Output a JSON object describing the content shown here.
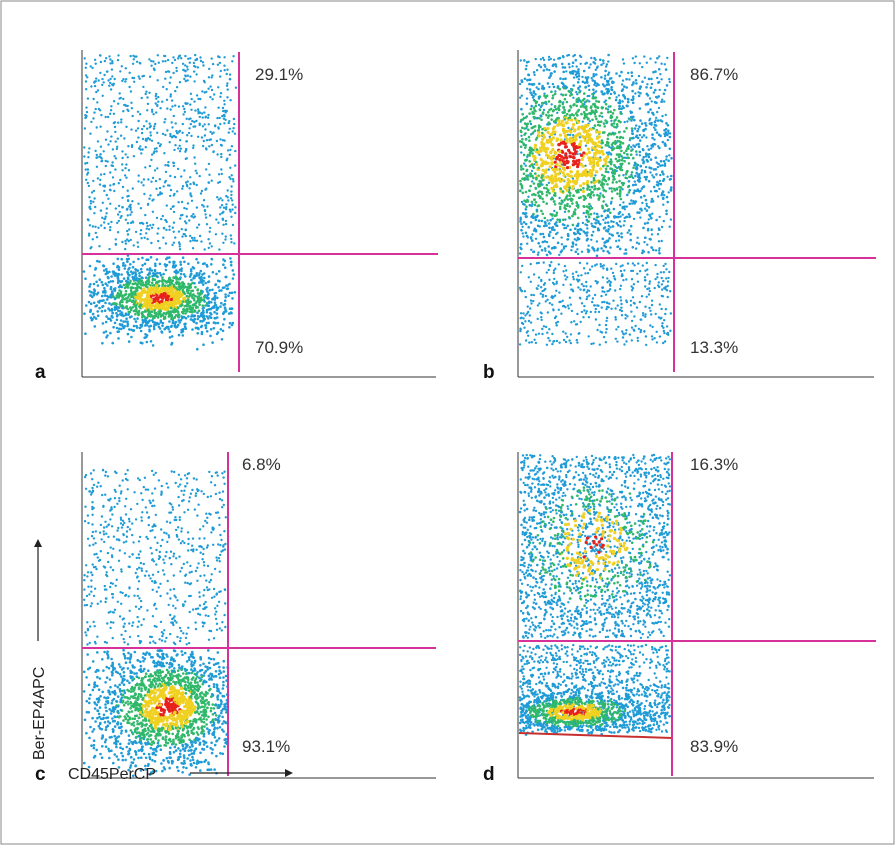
{
  "chart_data": [
    {
      "type": "scatter",
      "panel": "a",
      "panel_label": "a",
      "quadrant_labels": {
        "upper": "29.1%",
        "lower": "70.9%"
      },
      "upper_percent": 29.1,
      "lower_percent": 70.9
    },
    {
      "type": "scatter",
      "panel": "b",
      "panel_label": "b",
      "quadrant_labels": {
        "upper": "86.7%",
        "lower": "13.3%"
      },
      "upper_percent": 86.7,
      "lower_percent": 13.3
    },
    {
      "type": "scatter",
      "panel": "c",
      "panel_label": "c",
      "quadrant_labels": {
        "upper": "6.8%",
        "lower": "93.1%"
      },
      "upper_percent": 6.8,
      "lower_percent": 93.1,
      "xlabel": "CD45PerCP",
      "ylabel": "Ber-EP4APC"
    },
    {
      "type": "scatter",
      "panel": "d",
      "panel_label": "d",
      "quadrant_labels": {
        "upper": "16.3%",
        "lower": "83.9%"
      },
      "upper_percent": 16.3,
      "lower_percent": 83.9
    }
  ],
  "colors": {
    "gate_line": "#d6329a",
    "dot_low": "#1f9bd6",
    "dot_mid": "#2fb86a",
    "dot_high": "#f0d020",
    "dot_peak": "#e8201c",
    "axis": "#333333"
  }
}
